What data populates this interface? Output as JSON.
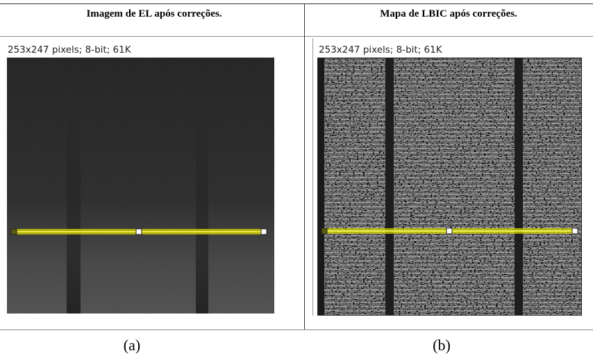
{
  "table": {
    "headers": [
      "Imagem de EL após correções.",
      "Mapa de LBIC após correções."
    ],
    "panels": [
      {
        "info": "253x247 pixels; 8-bit; 61K"
      },
      {
        "info": "253x247 pixels; 8-bit; 61K"
      }
    ]
  },
  "captions": [
    "(a)",
    "(b)"
  ]
}
